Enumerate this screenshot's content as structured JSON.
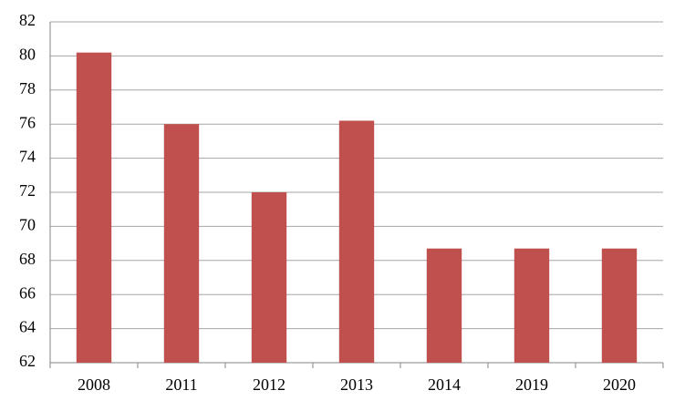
{
  "chart_data": {
    "type": "bar",
    "categories": [
      "2008",
      "2011",
      "2012",
      "2013",
      "2014",
      "2019",
      "2020"
    ],
    "values": [
      80.2,
      76,
      72,
      76.2,
      68.7,
      68.7,
      68.7
    ],
    "color": "#c0504d",
    "ylim": [
      62,
      82
    ],
    "yticks": [
      62,
      64,
      66,
      68,
      70,
      72,
      74,
      76,
      78,
      80,
      82
    ],
    "grid": true
  }
}
